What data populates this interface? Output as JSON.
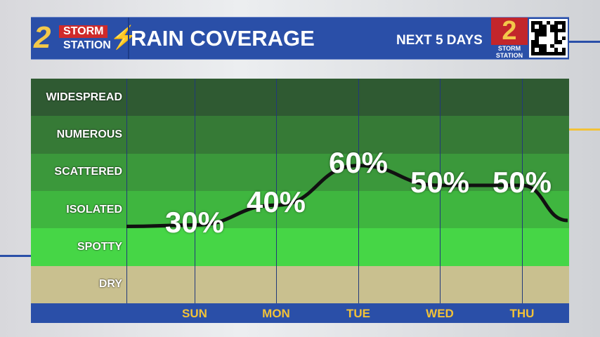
{
  "header": {
    "logo_number": "2",
    "logo_line1": "STORM",
    "logo_line2": "STATION",
    "title": "RAIN COVERAGE",
    "subtitle": "NEXT 5 DAYS",
    "badge_number": "2",
    "badge_text": "STORM STATION"
  },
  "chart_data": {
    "type": "line",
    "title": "RAIN COVERAGE",
    "xlabel": "",
    "ylabel": "",
    "categories": [
      "SUN",
      "MON",
      "TUE",
      "WED",
      "THU"
    ],
    "values": [
      30,
      40,
      60,
      50,
      50
    ],
    "value_labels": [
      "30%",
      "40%",
      "60%",
      "50%",
      "50%"
    ],
    "y_categories": [
      "WIDESPREAD",
      "NUMEROUS",
      "SCATTERED",
      "ISOLATED",
      "SPOTTY",
      "DRY"
    ],
    "row_colors": [
      "#2f5a32",
      "#367a36",
      "#3b983b",
      "#3fb63f",
      "#46d646",
      "#c9c08f"
    ],
    "ylim": [
      0,
      100
    ],
    "grid": true
  }
}
